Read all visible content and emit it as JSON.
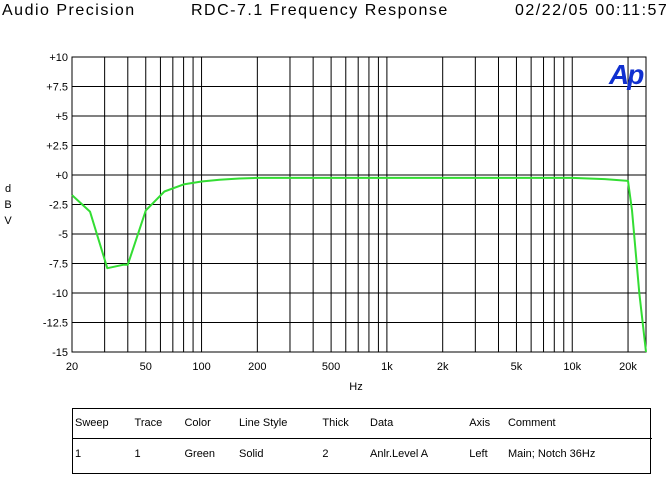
{
  "header": {
    "left": "Audio Precision",
    "center": "RDC-7.1 Frequency Response",
    "right": "02/22/05 00:11:57"
  },
  "logo_text": "Ap",
  "chart_data": {
    "type": "line",
    "title": "RDC-7.1 Frequency Response",
    "xlabel": "Hz",
    "ylabel": "dBV",
    "xscale": "log",
    "xlim": [
      20,
      25000
    ],
    "ylim": [
      -15,
      10
    ],
    "grid": true,
    "x_tick_labels": [
      {
        "value": 20,
        "label": "20"
      },
      {
        "value": 50,
        "label": "50"
      },
      {
        "value": 100,
        "label": "100"
      },
      {
        "value": 200,
        "label": "200"
      },
      {
        "value": 500,
        "label": "500"
      },
      {
        "value": 1000,
        "label": "1k"
      },
      {
        "value": 2000,
        "label": "2k"
      },
      {
        "value": 5000,
        "label": "5k"
      },
      {
        "value": 10000,
        "label": "10k"
      },
      {
        "value": 20000,
        "label": "20k"
      }
    ],
    "y_tick_labels": [
      {
        "value": 10,
        "label": "+10"
      },
      {
        "value": 7.5,
        "label": "+7.5"
      },
      {
        "value": 5,
        "label": "+5"
      },
      {
        "value": 2.5,
        "label": "+2.5"
      },
      {
        "value": 0,
        "label": "+0"
      },
      {
        "value": -2.5,
        "label": "-2.5"
      },
      {
        "value": -5,
        "label": "-5"
      },
      {
        "value": -7.5,
        "label": "-7.5"
      },
      {
        "value": -10,
        "label": "-10"
      },
      {
        "value": -12.5,
        "label": "-12.5"
      },
      {
        "value": -15,
        "label": "-15"
      }
    ],
    "series": [
      {
        "color": "#33dd33",
        "x": [
          20,
          25,
          31,
          38,
          40,
          50,
          63,
          80,
          100,
          125,
          160,
          200,
          500,
          1000,
          2000,
          5000,
          10000,
          15000,
          20000,
          21000,
          23000,
          25000
        ],
        "y": [
          -1.7,
          -3.1,
          -7.9,
          -7.6,
          -7.6,
          -3.0,
          -1.4,
          -0.8,
          -0.55,
          -0.4,
          -0.3,
          -0.25,
          -0.25,
          -0.25,
          -0.25,
          -0.25,
          -0.25,
          -0.35,
          -0.5,
          -3.0,
          -10.0,
          -15.0
        ]
      }
    ]
  },
  "legend": {
    "headers": [
      "Sweep",
      "Trace",
      "Color",
      "Line Style",
      "Thick",
      "Data",
      "Axis",
      "Comment"
    ],
    "rows": [
      [
        "1",
        "1",
        "Green",
        "Solid",
        "2",
        "Anlr.Level A",
        "Left",
        "Main; Notch 36Hz"
      ]
    ]
  }
}
